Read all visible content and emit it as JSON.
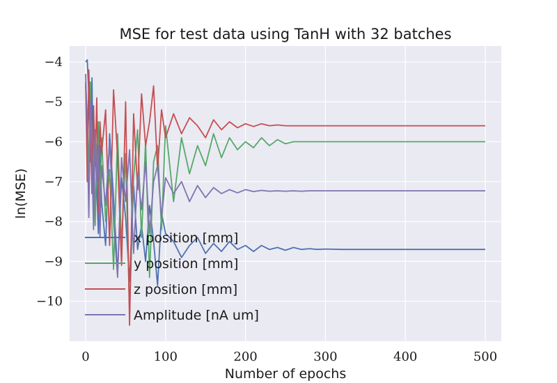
{
  "chart_data": {
    "type": "line",
    "title": "MSE for test data using TanH with 32 batches",
    "xlabel": "Number of epochs",
    "ylabel": "ln(MSE)",
    "xlim": [
      -20,
      520
    ],
    "ylim": [
      -11.0,
      -3.6
    ],
    "xticks": [
      0,
      100,
      200,
      300,
      400,
      500
    ],
    "yticks": [
      -10,
      -9,
      -8,
      -7,
      -6,
      -5,
      -4
    ],
    "grid": true,
    "legend_position": "lower-left",
    "series": [
      {
        "name": "x position [mm]",
        "color": "#4c72b0",
        "x": [
          0,
          2,
          4,
          6,
          8,
          10,
          12,
          14,
          16,
          18,
          20,
          25,
          30,
          35,
          40,
          45,
          50,
          55,
          60,
          65,
          70,
          75,
          80,
          85,
          90,
          95,
          100,
          110,
          120,
          130,
          140,
          150,
          160,
          170,
          180,
          190,
          200,
          210,
          220,
          230,
          240,
          250,
          260,
          270,
          280,
          290,
          300,
          320,
          350,
          400,
          450,
          500
        ],
        "y": [
          -4.0,
          -3.95,
          -4.8,
          -6.5,
          -4.4,
          -7.8,
          -5.9,
          -7.2,
          -8.3,
          -6.1,
          -7.5,
          -8.6,
          -5.8,
          -7.4,
          -9.3,
          -6.9,
          -7.9,
          -9.5,
          -7.1,
          -8.7,
          -8.1,
          -9.0,
          -7.6,
          -8.5,
          -9.6,
          -7.8,
          -8.3,
          -8.5,
          -8.9,
          -8.6,
          -8.4,
          -8.8,
          -8.55,
          -8.75,
          -8.5,
          -8.7,
          -8.6,
          -8.75,
          -8.6,
          -8.7,
          -8.65,
          -8.72,
          -8.65,
          -8.7,
          -8.68,
          -8.7,
          -8.69,
          -8.7,
          -8.7,
          -8.7,
          -8.7,
          -8.7
        ]
      },
      {
        "name": "y position [mm]",
        "color": "#55a868",
        "x": [
          0,
          2,
          4,
          6,
          8,
          10,
          12,
          14,
          16,
          18,
          20,
          25,
          30,
          35,
          40,
          45,
          50,
          55,
          60,
          65,
          70,
          75,
          80,
          85,
          90,
          95,
          100,
          110,
          120,
          130,
          140,
          150,
          160,
          170,
          180,
          190,
          200,
          210,
          220,
          230,
          240,
          250,
          260,
          270,
          280,
          290,
          300,
          320,
          350,
          400,
          450,
          500
        ],
        "y": [
          -4.6,
          -5.3,
          -6.8,
          -4.5,
          -7.3,
          -5.6,
          -8.1,
          -6.2,
          -5.5,
          -7.6,
          -5.9,
          -8.0,
          -6.7,
          -9.2,
          -5.8,
          -8.6,
          -6.3,
          -10.3,
          -6.9,
          -5.7,
          -8.4,
          -6.0,
          -9.4,
          -6.5,
          -6.1,
          -8.2,
          -5.6,
          -7.5,
          -5.9,
          -6.8,
          -6.1,
          -6.6,
          -5.8,
          -6.4,
          -5.9,
          -6.2,
          -6.0,
          -6.15,
          -5.9,
          -6.1,
          -5.95,
          -6.05,
          -6.0,
          -6.0,
          -6.0,
          -6.0,
          -6.0,
          -6.0,
          -6.0,
          -6.0,
          -6.0,
          -6.0
        ]
      },
      {
        "name": "z position [mm]",
        "color": "#c44e52",
        "x": [
          0,
          2,
          4,
          6,
          8,
          10,
          12,
          14,
          16,
          18,
          20,
          25,
          30,
          35,
          40,
          45,
          50,
          55,
          60,
          65,
          70,
          75,
          80,
          85,
          90,
          95,
          100,
          110,
          120,
          130,
          140,
          150,
          160,
          170,
          180,
          190,
          200,
          210,
          220,
          230,
          240,
          250,
          260,
          270,
          280,
          290,
          300,
          320,
          350,
          400,
          450,
          500
        ],
        "y": [
          -4.5,
          -7.0,
          -4.2,
          -5.8,
          -7.3,
          -5.1,
          -6.6,
          -4.9,
          -7.8,
          -5.5,
          -6.3,
          -5.2,
          -8.6,
          -4.7,
          -6.4,
          -9.1,
          -5.0,
          -10.6,
          -5.3,
          -7.2,
          -4.8,
          -6.1,
          -5.5,
          -4.6,
          -6.7,
          -5.2,
          -5.9,
          -5.3,
          -5.8,
          -5.4,
          -5.6,
          -5.9,
          -5.45,
          -5.7,
          -5.5,
          -5.65,
          -5.55,
          -5.62,
          -5.55,
          -5.6,
          -5.58,
          -5.6,
          -5.6,
          -5.6,
          -5.6,
          -5.6,
          -5.6,
          -5.6,
          -5.6,
          -5.6,
          -5.6,
          -5.6
        ]
      },
      {
        "name": "Amplitude [nA um]",
        "color": "#8172b2",
        "x": [
          0,
          2,
          4,
          6,
          8,
          10,
          12,
          14,
          16,
          18,
          20,
          25,
          30,
          35,
          40,
          45,
          50,
          55,
          60,
          65,
          70,
          75,
          80,
          85,
          90,
          95,
          100,
          110,
          120,
          130,
          140,
          150,
          160,
          170,
          180,
          190,
          200,
          210,
          220,
          230,
          240,
          250,
          260,
          270,
          280,
          290,
          300,
          320,
          350,
          400,
          450,
          500
        ],
        "y": [
          -4.3,
          -5.6,
          -7.9,
          -5.0,
          -6.4,
          -8.2,
          -5.7,
          -7.0,
          -6.1,
          -8.4,
          -6.6,
          -7.6,
          -6.0,
          -8.0,
          -9.4,
          -6.4,
          -7.5,
          -6.2,
          -8.8,
          -6.8,
          -7.7,
          -6.5,
          -8.3,
          -7.0,
          -6.6,
          -7.9,
          -6.9,
          -7.3,
          -7.0,
          -7.5,
          -7.1,
          -7.4,
          -7.15,
          -7.3,
          -7.2,
          -7.28,
          -7.2,
          -7.25,
          -7.22,
          -7.24,
          -7.23,
          -7.24,
          -7.23,
          -7.24,
          -7.23,
          -7.23,
          -7.23,
          -7.23,
          -7.23,
          -7.23,
          -7.23,
          -7.23
        ]
      }
    ]
  }
}
